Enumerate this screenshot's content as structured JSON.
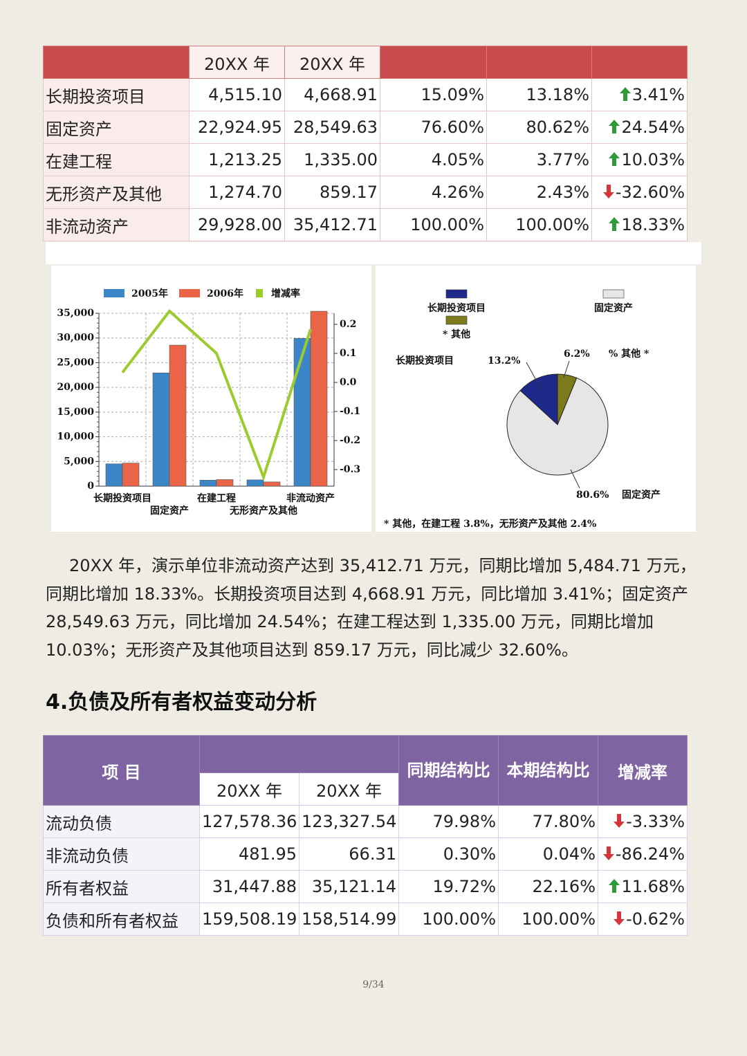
{
  "table1": {
    "header": {
      "year1": "20XX 年",
      "year2": "20XX 年"
    },
    "rows": [
      {
        "cells": [
          "长期投资项目",
          "4,515.10",
          "4,668.91",
          "15.09%",
          "13.18%",
          "3.41%"
        ],
        "trend": "up"
      },
      {
        "cells": [
          "固定资产",
          "22,924.95",
          "28,549.63",
          "76.60%",
          "80.62%",
          "24.54%"
        ],
        "trend": "up"
      },
      {
        "cells": [
          "在建工程",
          "1,213.25",
          "1,335.00",
          "4.05%",
          "3.77%",
          "10.03%"
        ],
        "trend": "up"
      },
      {
        "cells": [
          "无形资产及其他",
          "1,274.70",
          "859.17",
          "4.26%",
          "2.43%",
          "-32.60%"
        ],
        "trend": "down"
      },
      {
        "cells": [
          "非流动资产",
          "29,928.00",
          "35,412.71",
          "100.00%",
          "100.00%",
          "18.33%"
        ],
        "trend": "up"
      }
    ]
  },
  "chart_data": [
    {
      "type": "bar",
      "categories": [
        "长期投资项目",
        "固定资产",
        "在建工程",
        "无形资产及其他",
        "非流动资产"
      ],
      "series": [
        {
          "name": "2005年",
          "color": "#3b86c6",
          "values": [
            4515.1,
            22924.95,
            1213.25,
            1274.7,
            29928.0
          ]
        },
        {
          "name": "2006年",
          "color": "#ea6448",
          "values": [
            4668.91,
            28549.63,
            1335.0,
            859.17,
            35412.71
          ]
        },
        {
          "name": "增减率",
          "color": "#9bcb2c",
          "type": "line",
          "axis": "y2",
          "values": [
            0.0341,
            0.2454,
            0.1003,
            -0.326,
            0.1833
          ]
        }
      ],
      "ylim": [
        0,
        35000
      ],
      "yticks": [
        0,
        {
          "value": 5000,
          "label": "5,000"
        },
        {
          "value": 10000,
          "label": "10,000"
        },
        {
          "value": 15000,
          "label": "15,000"
        },
        {
          "value": 20000,
          "label": "20,000"
        },
        {
          "value": 25000,
          "label": "25,000"
        },
        {
          "value": 30000,
          "label": "30,000"
        },
        {
          "value": 35000,
          "label": "35,000"
        }
      ],
      "y2lim": [
        -0.357,
        0.238
      ],
      "y2ticks": [
        0.2,
        0.1,
        {
          "value": 0,
          "label": "0.0"
        },
        -0.1,
        -0.2,
        -0.3
      ],
      "grid": true
    },
    {
      "type": "pie",
      "categories": [
        "长期投资项目",
        "固定资产",
        "* 其他"
      ],
      "values": [
        13.2,
        80.6,
        6.2
      ],
      "value_labels": [
        "13.2%",
        "80.6%",
        "6.2%"
      ],
      "colors": [
        "#1d2a8c",
        "#e6e6e6",
        "#7d7a1c"
      ],
      "slice_labels": [
        "长期投资项目",
        "固定资产",
        "% 其他 *"
      ],
      "footnote": "* 其他，在建工程 3.8%，无形资产及其他 2.4%"
    }
  ],
  "paragraph": "20XX 年，演示单位非流动资产达到 35,412.71 万元，同期比增加 5,484.71 万元，同期比增加 18.33%。长期投资项目达到 4,668.91 万元，同比增加 3.41%；固定资产 28,549.63 万元，同比增加 24.54%；在建工程达到 1,335.00 万元，同期比增加 10.03%；无形资产及其他项目达到 859.17 万元，同比减少 32.60%。",
  "section_title": "4.负债及所有者权益变动分析",
  "table2": {
    "header": {
      "item": "项 目",
      "year1": "20XX 年",
      "year2": "20XX 年",
      "prev_ratio": "同期结构比",
      "curr_ratio": "本期结构比",
      "change": "增减率"
    },
    "rows": [
      {
        "cells": [
          "流动负债",
          "127,578.36",
          "123,327.54",
          "79.98%",
          "77.80%",
          "-3.33%"
        ],
        "trend": "down"
      },
      {
        "cells": [
          "非流动负债",
          "481.95",
          "66.31",
          "0.30%",
          "0.04%",
          "-86.24%"
        ],
        "trend": "down"
      },
      {
        "cells": [
          "所有者权益",
          "31,447.88",
          "35,121.14",
          "19.72%",
          "22.16%",
          "11.68%"
        ],
        "trend": "up"
      },
      {
        "cells": [
          "负债和所有者权益",
          "159,508.19",
          "158,514.99",
          "100.00%",
          "100.00%",
          "-0.62%"
        ],
        "trend": "down"
      }
    ]
  },
  "page_number": "9/34"
}
